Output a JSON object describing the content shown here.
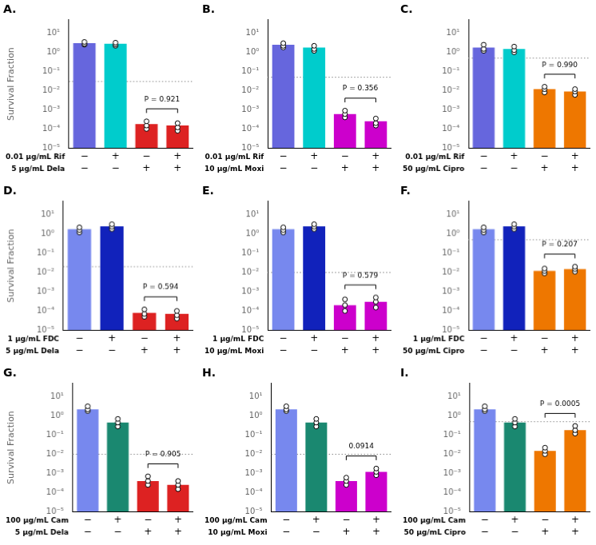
{
  "chart_data": [
    {
      "type": "bar",
      "title": "A.",
      "y_label": "Survival Fraction",
      "categories": [
        [
          "−",
          "−"
        ],
        [
          "+",
          "−"
        ],
        [
          "−",
          "+"
        ],
        [
          "+",
          "+"
        ]
      ],
      "values": [
        3.0,
        2.8,
        0.00018,
        0.00015
      ],
      "colors": [
        "#6666dd",
        "#00cccc",
        "#dd2222",
        "#dd2222"
      ],
      "points": [
        [
          3.5,
          2.8,
          2.5
        ],
        [
          3.2,
          2.6,
          2.2
        ],
        [
          0.00025,
          0.00015,
          0.0001
        ],
        [
          0.0002,
          0.00012,
          8e-05
        ]
      ],
      "log": "y",
      "ylim": [
        1e-05,
        50
      ],
      "yticks": [
        {
          "value": 1e-05,
          "label": "10⁻⁵"
        },
        {
          "value": 0.0001,
          "label": "10⁻⁴"
        },
        {
          "value": 0.001,
          "label": "10⁻³"
        },
        {
          "value": 0.01,
          "label": "10⁻²"
        },
        {
          "value": 0.1,
          "label": "10⁻¹"
        },
        {
          "value": 1,
          "label": "10⁰"
        },
        {
          "value": 10,
          "label": "10¹"
        }
      ],
      "grid": false,
      "annotations": [
        {
          "text": "0.01 μg/mL Rif",
          "row": 0
        },
        {
          "text": "5 μg/mL Dela",
          "row": 1
        },
        {
          "y": 0.03,
          "line_style": "dotted"
        },
        {
          "text": "P = 0.921",
          "between": [
            2,
            3
          ]
        }
      ]
    },
    {
      "type": "bar",
      "title": "B.",
      "categories": [
        [
          "−",
          "−"
        ],
        [
          "+",
          "−"
        ],
        [
          "−",
          "+"
        ],
        [
          "+",
          "+"
        ]
      ],
      "values": [
        2.5,
        1.8,
        0.0006,
        0.00025
      ],
      "colors": [
        "#6666dd",
        "#00cccc",
        "#cc00cc",
        "#cc00cc"
      ],
      "points": [
        [
          3.0,
          2.2,
          1.8
        ],
        [
          2.2,
          1.5,
          1.2
        ],
        [
          0.0009,
          0.0006,
          0.0004
        ],
        [
          0.00035,
          0.0002,
          0.00015
        ]
      ],
      "log": "y",
      "ylim": [
        1e-05,
        50
      ],
      "yticks": [
        {
          "value": 1e-05,
          "label": "10⁻⁵"
        },
        {
          "value": 0.0001,
          "label": "10⁻⁴"
        },
        {
          "value": 0.001,
          "label": "10⁻³"
        },
        {
          "value": 0.01,
          "label": "10⁻²"
        },
        {
          "value": 0.1,
          "label": "10⁻¹"
        },
        {
          "value": 1,
          "label": "10⁰"
        },
        {
          "value": 10,
          "label": "10¹"
        }
      ],
      "grid": false,
      "annotations": [
        {
          "text": "0.01 μg/mL Rif",
          "row": 0
        },
        {
          "text": "10 μg/mL Moxi",
          "row": 1
        },
        {
          "y": 0.05,
          "line_style": "dotted"
        },
        {
          "text": "P = 0.356",
          "between": [
            2,
            3
          ]
        }
      ]
    },
    {
      "type": "bar",
      "title": "C.",
      "categories": [
        [
          "−",
          "−"
        ],
        [
          "+",
          "−"
        ],
        [
          "−",
          "+"
        ],
        [
          "+",
          "+"
        ]
      ],
      "values": [
        1.8,
        1.5,
        0.012,
        0.009
      ],
      "colors": [
        "#6666dd",
        "#00cccc",
        "#ee7700",
        "#ee7700"
      ],
      "points": [
        [
          2.5,
          1.5,
          1.2
        ],
        [
          2.0,
          1.3,
          1.0
        ],
        [
          0.016,
          0.012,
          0.008
        ],
        [
          0.012,
          0.009,
          0.006
        ]
      ],
      "log": "y",
      "ylim": [
        1e-05,
        50
      ],
      "yticks": [
        {
          "value": 1e-05,
          "label": "10⁻⁵"
        },
        {
          "value": 0.0001,
          "label": "10⁻⁴"
        },
        {
          "value": 0.001,
          "label": "10⁻³"
        },
        {
          "value": 0.01,
          "label": "10⁻²"
        },
        {
          "value": 0.1,
          "label": "10⁻¹"
        },
        {
          "value": 1,
          "label": "10⁰"
        },
        {
          "value": 10,
          "label": "10¹"
        }
      ],
      "grid": false,
      "annotations": [
        {
          "text": "0.01 μg/mL Rif",
          "row": 0
        },
        {
          "text": "50 μg/mL Cipro",
          "row": 1
        },
        {
          "y": 0.5,
          "line_style": "dotted"
        },
        {
          "text": "P = 0.990",
          "between": [
            2,
            3
          ]
        }
      ]
    },
    {
      "type": "bar",
      "title": "D.",
      "y_label": "Survival Fraction",
      "categories": [
        [
          "−",
          "−"
        ],
        [
          "+",
          "−"
        ],
        [
          "−",
          "+"
        ],
        [
          "+",
          "+"
        ]
      ],
      "values": [
        1.8,
        2.5,
        8e-05,
        7e-05
      ],
      "colors": [
        "#7788ee",
        "#1122bb",
        "#dd2222",
        "#dd2222"
      ],
      "points": [
        [
          2.2,
          1.6,
          1.2
        ],
        [
          3.2,
          2.4,
          1.8
        ],
        [
          0.00012,
          7e-05,
          5e-05
        ],
        [
          0.0001,
          6e-05,
          4e-05
        ]
      ],
      "log": "y",
      "ylim": [
        1e-05,
        50
      ],
      "yticks": [
        {
          "value": 1e-05,
          "label": "10⁻⁵"
        },
        {
          "value": 0.0001,
          "label": "10⁻⁴"
        },
        {
          "value": 0.001,
          "label": "10⁻³"
        },
        {
          "value": 0.01,
          "label": "10⁻²"
        },
        {
          "value": 0.1,
          "label": "10⁻¹"
        },
        {
          "value": 1,
          "label": "10⁰"
        },
        {
          "value": 10,
          "label": "10¹"
        }
      ],
      "grid": false,
      "annotations": [
        {
          "text": "1 μg/mL FDC",
          "row": 0
        },
        {
          "text": "5 μg/mL Dela",
          "row": 1
        },
        {
          "y": 0.02,
          "line_style": "dotted"
        },
        {
          "text": "P = 0.594",
          "between": [
            2,
            3
          ]
        }
      ]
    },
    {
      "type": "bar",
      "title": "E.",
      "categories": [
        [
          "−",
          "−"
        ],
        [
          "+",
          "−"
        ],
        [
          "−",
          "+"
        ],
        [
          "+",
          "+"
        ]
      ],
      "values": [
        1.8,
        2.5,
        0.0002,
        0.0003
      ],
      "colors": [
        "#7788ee",
        "#1122bb",
        "#cc00cc",
        "#cc00cc"
      ],
      "points": [
        [
          2.2,
          1.6,
          1.2
        ],
        [
          3.2,
          2.4,
          1.8
        ],
        [
          0.0004,
          0.0002,
          0.0001
        ],
        [
          0.0005,
          0.0003,
          0.00015
        ]
      ],
      "log": "y",
      "ylim": [
        1e-05,
        50
      ],
      "yticks": [
        {
          "value": 1e-05,
          "label": "10⁻⁵"
        },
        {
          "value": 0.0001,
          "label": "10⁻⁴"
        },
        {
          "value": 0.001,
          "label": "10⁻³"
        },
        {
          "value": 0.01,
          "label": "10⁻²"
        },
        {
          "value": 0.1,
          "label": "10⁻¹"
        },
        {
          "value": 1,
          "label": "10⁰"
        },
        {
          "value": 10,
          "label": "10¹"
        }
      ],
      "grid": false,
      "annotations": [
        {
          "text": "1 μg/mL FDC",
          "row": 0
        },
        {
          "text": "10 μg/mL Moxi",
          "row": 1
        },
        {
          "y": 0.01,
          "line_style": "dotted"
        },
        {
          "text": "P = 0.579",
          "between": [
            2,
            3
          ]
        }
      ]
    },
    {
      "type": "bar",
      "title": "F.",
      "categories": [
        [
          "−",
          "−"
        ],
        [
          "+",
          "−"
        ],
        [
          "−",
          "+"
        ],
        [
          "+",
          "+"
        ]
      ],
      "values": [
        1.8,
        2.5,
        0.012,
        0.015
      ],
      "colors": [
        "#7788ee",
        "#1122bb",
        "#ee7700",
        "#ee7700"
      ],
      "points": [
        [
          2.2,
          1.6,
          1.2
        ],
        [
          3.2,
          2.4,
          1.8
        ],
        [
          0.016,
          0.012,
          0.009
        ],
        [
          0.02,
          0.015,
          0.011
        ]
      ],
      "log": "y",
      "ylim": [
        1e-05,
        50
      ],
      "yticks": [
        {
          "value": 1e-05,
          "label": "10⁻⁵"
        },
        {
          "value": 0.0001,
          "label": "10⁻⁴"
        },
        {
          "value": 0.001,
          "label": "10⁻³"
        },
        {
          "value": 0.01,
          "label": "10⁻²"
        },
        {
          "value": 0.1,
          "label": "10⁻¹"
        },
        {
          "value": 1,
          "label": "10⁰"
        },
        {
          "value": 10,
          "label": "10¹"
        }
      ],
      "grid": false,
      "annotations": [
        {
          "text": "1 μg/mL FDC",
          "row": 0
        },
        {
          "text": "50 μg/mL Cipro",
          "row": 1
        },
        {
          "y": 0.5,
          "line_style": "dotted"
        },
        {
          "text": "P = 0.207",
          "between": [
            2,
            3
          ]
        }
      ]
    },
    {
      "type": "bar",
      "title": "G.",
      "y_label": "Survival Fraction",
      "categories": [
        [
          "−",
          "−"
        ],
        [
          "+",
          "−"
        ],
        [
          "−",
          "+"
        ],
        [
          "+",
          "+"
        ]
      ],
      "values": [
        2.2,
        0.45,
        0.0004,
        0.00025
      ],
      "colors": [
        "#7788ee",
        "#1a8870",
        "#dd2222",
        "#dd2222"
      ],
      "points": [
        [
          3.2,
          2.2,
          1.8
        ],
        [
          0.7,
          0.45,
          0.28
        ],
        [
          0.0007,
          0.0004,
          0.00025
        ],
        [
          0.0004,
          0.00025,
          0.00015
        ]
      ],
      "log": "y",
      "ylim": [
        1e-05,
        50
      ],
      "yticks": [
        {
          "value": 1e-05,
          "label": "10⁻⁵"
        },
        {
          "value": 0.0001,
          "label": "10⁻⁴"
        },
        {
          "value": 0.001,
          "label": "10⁻³"
        },
        {
          "value": 0.01,
          "label": "10⁻²"
        },
        {
          "value": 0.1,
          "label": "10⁻¹"
        },
        {
          "value": 1,
          "label": "10⁰"
        },
        {
          "value": 10,
          "label": "10¹"
        }
      ],
      "grid": false,
      "annotations": [
        {
          "text": "100 μg/mL Cam",
          "row": 0
        },
        {
          "text": "5 μg/mL Dela",
          "row": 1
        },
        {
          "y": 0.01,
          "line_style": "dotted"
        },
        {
          "text": "P = 0.905",
          "between": [
            2,
            3
          ]
        }
      ]
    },
    {
      "type": "bar",
      "title": "H.",
      "categories": [
        [
          "−",
          "−"
        ],
        [
          "+",
          "−"
        ],
        [
          "−",
          "+"
        ],
        [
          "+",
          "+"
        ]
      ],
      "values": [
        2.2,
        0.45,
        0.0004,
        0.0012
      ],
      "colors": [
        "#7788ee",
        "#1a8870",
        "#cc00cc",
        "#cc00cc"
      ],
      "points": [
        [
          3.2,
          2.2,
          1.8
        ],
        [
          0.7,
          0.45,
          0.28
        ],
        [
          0.0006,
          0.0004,
          0.00025
        ],
        [
          0.0018,
          0.0012,
          0.0008
        ]
      ],
      "log": "y",
      "ylim": [
        1e-05,
        50
      ],
      "yticks": [
        {
          "value": 1e-05,
          "label": "10⁻⁵"
        },
        {
          "value": 0.0001,
          "label": "10⁻⁴"
        },
        {
          "value": 0.001,
          "label": "10⁻³"
        },
        {
          "value": 0.01,
          "label": "10⁻²"
        },
        {
          "value": 0.1,
          "label": "10⁻¹"
        },
        {
          "value": 1,
          "label": "10⁰"
        },
        {
          "value": 10,
          "label": "10¹"
        }
      ],
      "grid": false,
      "annotations": [
        {
          "text": "100 μg/mL Cam",
          "row": 0
        },
        {
          "text": "10 μg/mL Moxi",
          "row": 1
        },
        {
          "y": 0.01,
          "line_style": "dotted"
        },
        {
          "text": "0.0914",
          "between": [
            2,
            3
          ]
        }
      ]
    },
    {
      "type": "bar",
      "title": "I.",
      "categories": [
        [
          "−",
          "−"
        ],
        [
          "+",
          "−"
        ],
        [
          "−",
          "+"
        ],
        [
          "+",
          "+"
        ]
      ],
      "values": [
        2.2,
        0.45,
        0.015,
        0.18
      ],
      "colors": [
        "#7788ee",
        "#1a8870",
        "#ee7700",
        "#ee7700"
      ],
      "points": [
        [
          3.2,
          2.2,
          1.8
        ],
        [
          0.7,
          0.45,
          0.28
        ],
        [
          0.022,
          0.015,
          0.01
        ],
        [
          0.3,
          0.18,
          0.12
        ]
      ],
      "log": "y",
      "ylim": [
        1e-05,
        50
      ],
      "yticks": [
        {
          "value": 1e-05,
          "label": "10⁻⁵"
        },
        {
          "value": 0.0001,
          "label": "10⁻⁴"
        },
        {
          "value": 0.001,
          "label": "10⁻³"
        },
        {
          "value": 0.01,
          "label": "10⁻²"
        },
        {
          "value": 0.1,
          "label": "10⁻¹"
        },
        {
          "value": 1,
          "label": "10⁰"
        },
        {
          "value": 10,
          "label": "10¹"
        }
      ],
      "grid": false,
      "annotations": [
        {
          "text": "100 μg/mL Cam",
          "row": 0
        },
        {
          "text": "50 μg/mL Cipro",
          "row": 1
        },
        {
          "y": 0.5,
          "line_style": "dotted"
        },
        {
          "text": "P = 0.0005",
          "between": [
            2,
            3
          ]
        }
      ]
    }
  ]
}
